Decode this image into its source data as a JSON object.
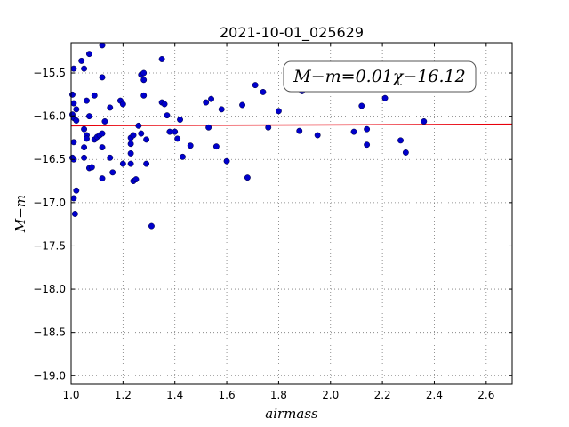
{
  "chart_data": {
    "type": "scatter",
    "title": "2021-10-01_025629",
    "xlabel": "airmass",
    "ylabel": "M−m",
    "xlim": [
      1.0,
      2.7
    ],
    "ylim": [
      -19.1,
      -15.15
    ],
    "xticks": [
      "1.0",
      "1.2",
      "1.4",
      "1.6",
      "1.8",
      "2.0",
      "2.2",
      "2.4",
      "2.6"
    ],
    "yticks": [
      "−15.5",
      "−16.0",
      "−16.5",
      "−17.0",
      "−17.5",
      "−18.0",
      "−18.5",
      "−19.0"
    ],
    "grid": true,
    "annotation": "M−m=0.01χ−16.12",
    "fit_line": {
      "slope": 0.01,
      "intercept": -16.12,
      "color": "#e8000b"
    },
    "point_color": "#0000cc",
    "points": [
      {
        "x": 1.005,
        "y": -15.75
      },
      {
        "x": 1.01,
        "y": -15.45
      },
      {
        "x": 1.01,
        "y": -15.85
      },
      {
        "x": 1.005,
        "y": -15.98
      },
      {
        "x": 1.01,
        "y": -16.02
      },
      {
        "x": 1.02,
        "y": -16.05
      },
      {
        "x": 1.02,
        "y": -15.92
      },
      {
        "x": 1.01,
        "y": -16.3
      },
      {
        "x": 1.005,
        "y": -16.48
      },
      {
        "x": 1.01,
        "y": -16.5
      },
      {
        "x": 1.02,
        "y": -16.86
      },
      {
        "x": 1.01,
        "y": -16.95
      },
      {
        "x": 1.015,
        "y": -17.13
      },
      {
        "x": 1.04,
        "y": -15.36
      },
      {
        "x": 1.05,
        "y": -15.45
      },
      {
        "x": 1.06,
        "y": -15.82
      },
      {
        "x": 1.07,
        "y": -15.28
      },
      {
        "x": 1.07,
        "y": -16.0
      },
      {
        "x": 1.05,
        "y": -16.15
      },
      {
        "x": 1.06,
        "y": -16.22
      },
      {
        "x": 1.06,
        "y": -16.26
      },
      {
        "x": 1.05,
        "y": -16.36
      },
      {
        "x": 1.05,
        "y": -16.48
      },
      {
        "x": 1.07,
        "y": -16.6
      },
      {
        "x": 1.08,
        "y": -16.59
      },
      {
        "x": 1.09,
        "y": -15.76
      },
      {
        "x": 1.09,
        "y": -16.27
      },
      {
        "x": 1.1,
        "y": -16.24
      },
      {
        "x": 1.11,
        "y": -16.22
      },
      {
        "x": 1.12,
        "y": -16.2
      },
      {
        "x": 1.12,
        "y": -15.18
      },
      {
        "x": 1.12,
        "y": -15.55
      },
      {
        "x": 1.13,
        "y": -16.06
      },
      {
        "x": 1.12,
        "y": -16.36
      },
      {
        "x": 1.12,
        "y": -16.72
      },
      {
        "x": 1.15,
        "y": -15.9
      },
      {
        "x": 1.15,
        "y": -16.48
      },
      {
        "x": 1.16,
        "y": -16.65
      },
      {
        "x": 1.19,
        "y": -15.82
      },
      {
        "x": 1.2,
        "y": -15.86
      },
      {
        "x": 1.2,
        "y": -16.55
      },
      {
        "x": 1.23,
        "y": -16.55
      },
      {
        "x": 1.23,
        "y": -16.25
      },
      {
        "x": 1.23,
        "y": -16.32
      },
      {
        "x": 1.23,
        "y": -16.43
      },
      {
        "x": 1.24,
        "y": -16.22
      },
      {
        "x": 1.24,
        "y": -16.75
      },
      {
        "x": 1.25,
        "y": -16.73
      },
      {
        "x": 1.26,
        "y": -16.11
      },
      {
        "x": 1.27,
        "y": -16.2
      },
      {
        "x": 1.27,
        "y": -15.52
      },
      {
        "x": 1.28,
        "y": -15.5
      },
      {
        "x": 1.28,
        "y": -15.58
      },
      {
        "x": 1.28,
        "y": -15.76
      },
      {
        "x": 1.29,
        "y": -16.27
      },
      {
        "x": 1.29,
        "y": -16.55
      },
      {
        "x": 1.31,
        "y": -17.27
      },
      {
        "x": 1.35,
        "y": -15.34
      },
      {
        "x": 1.35,
        "y": -15.84
      },
      {
        "x": 1.36,
        "y": -15.86
      },
      {
        "x": 1.37,
        "y": -15.99
      },
      {
        "x": 1.38,
        "y": -16.18
      },
      {
        "x": 1.4,
        "y": -16.18
      },
      {
        "x": 1.41,
        "y": -16.26
      },
      {
        "x": 1.42,
        "y": -16.04
      },
      {
        "x": 1.43,
        "y": -16.47
      },
      {
        "x": 1.46,
        "y": -16.34
      },
      {
        "x": 1.52,
        "y": -15.84
      },
      {
        "x": 1.53,
        "y": -16.13
      },
      {
        "x": 1.54,
        "y": -15.8
      },
      {
        "x": 1.56,
        "y": -16.35
      },
      {
        "x": 1.58,
        "y": -15.92
      },
      {
        "x": 1.6,
        "y": -16.52
      },
      {
        "x": 1.66,
        "y": -15.87
      },
      {
        "x": 1.68,
        "y": -16.71
      },
      {
        "x": 1.71,
        "y": -15.64
      },
      {
        "x": 1.74,
        "y": -15.72
      },
      {
        "x": 1.76,
        "y": -16.13
      },
      {
        "x": 1.8,
        "y": -15.94
      },
      {
        "x": 1.88,
        "y": -16.17
      },
      {
        "x": 1.89,
        "y": -15.71
      },
      {
        "x": 1.95,
        "y": -16.22
      },
      {
        "x": 2.09,
        "y": -16.18
      },
      {
        "x": 2.12,
        "y": -15.88
      },
      {
        "x": 2.14,
        "y": -16.15
      },
      {
        "x": 2.14,
        "y": -16.33
      },
      {
        "x": 2.21,
        "y": -15.79
      },
      {
        "x": 2.27,
        "y": -16.28
      },
      {
        "x": 2.29,
        "y": -16.42
      },
      {
        "x": 2.36,
        "y": -16.06
      }
    ]
  }
}
